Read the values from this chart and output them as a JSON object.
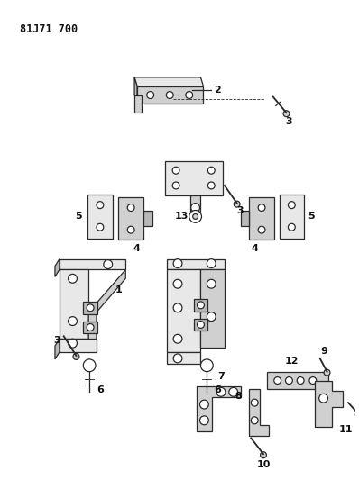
{
  "title": "81J71 700",
  "bg_color": "#ffffff",
  "line_color": "#2a2a2a",
  "fill_light": "#e8e8e8",
  "fill_mid": "#d0d0d0",
  "fill_dark": "#b8b8b8",
  "fig_w": 3.98,
  "fig_h": 5.33,
  "dpi": 100
}
